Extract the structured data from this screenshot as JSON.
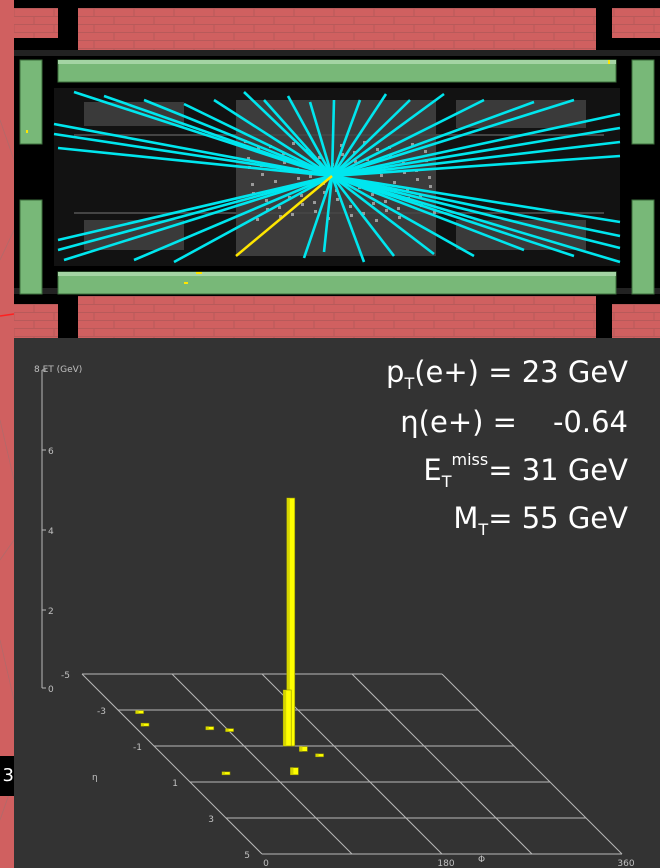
{
  "edge_label": "3",
  "kinematics": {
    "line1": {
      "var": "p",
      "sub": "T",
      "rest": "(e+) = 23 GeV"
    },
    "line2": {
      "text": "η(e+) =",
      "value": "-0.64"
    },
    "line3": {
      "var": "E",
      "sub": "T",
      "sup": "miss",
      "rest": "= 31 GeV"
    },
    "line4": {
      "var": "M",
      "sub": "T",
      "rest": "= 55 GeV"
    }
  },
  "lego": {
    "z_label": "8  ET (GeV)",
    "z_ticks": [
      "6",
      "4",
      "2",
      "0"
    ],
    "eta_title": "η",
    "eta_ticks": [
      "-5",
      "-3",
      "-1",
      "1",
      "3",
      "5"
    ],
    "phi_title": "Φ",
    "phi_ticks": [
      "0",
      "180",
      "360"
    ],
    "towers": [
      {
        "eta": -1.0,
        "phi": 0.38,
        "et": 6.2,
        "note": "electron tower"
      },
      {
        "eta": -1.0,
        "phi": 0.37,
        "et": 1.4
      },
      {
        "eta": -2.8,
        "phi": 0.05,
        "et": 0.05
      },
      {
        "eta": -2.1,
        "phi": 0.03,
        "et": 0.05
      },
      {
        "eta": -1.9,
        "phi": 0.2,
        "et": 0.08
      },
      {
        "eta": -1.8,
        "phi": 0.25,
        "et": 0.05
      },
      {
        "eta": -0.7,
        "phi": 0.4,
        "et": 0.12
      },
      {
        "eta": -0.4,
        "phi": 0.43,
        "et": 0.05
      },
      {
        "eta": 0.6,
        "phi": 0.12,
        "et": 0.05
      },
      {
        "eta": 0.6,
        "phi": 0.31,
        "et": 0.18
      }
    ]
  },
  "colors": {
    "track": "#00e6ee",
    "electron": "#ffe600",
    "tower": "#ffff00",
    "muon_brick": "#d06060",
    "calorimeter": "#78b878",
    "plot_bg": "#333333"
  }
}
